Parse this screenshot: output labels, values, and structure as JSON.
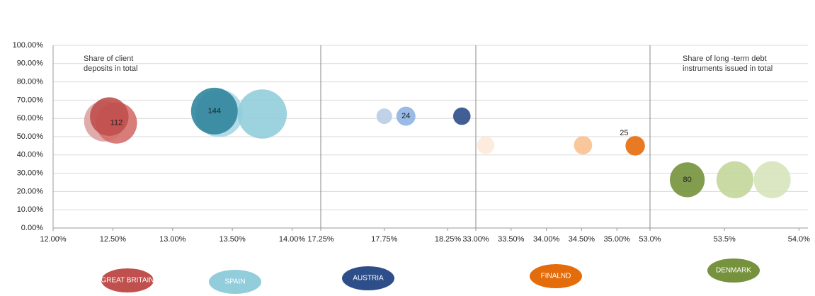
{
  "chart_data": [
    {
      "type": "bubble",
      "annotation": "Share of client deposits in total",
      "xlim": [
        12,
        14.24
      ],
      "xticks": [
        {
          "value": 12,
          "label": "12.00%"
        },
        {
          "value": 12.5,
          "label": "12.50%"
        },
        {
          "value": 13,
          "label": "13.00%"
        },
        {
          "value": 13.5,
          "label": "13.50%"
        },
        {
          "value": 14,
          "label": "14.00%"
        }
      ],
      "ylim": [
        0,
        100
      ],
      "yticks": [
        {
          "value": 0,
          "label": "0.00%"
        },
        {
          "value": 10,
          "label": "10.00%"
        },
        {
          "value": 20,
          "label": "20.00%"
        },
        {
          "value": 30,
          "label": "30.00%"
        },
        {
          "value": 40,
          "label": "40.00%"
        },
        {
          "value": 50,
          "label": "50.00%"
        },
        {
          "value": 60,
          "label": "60.00%"
        },
        {
          "value": 70,
          "label": "70.00%"
        },
        {
          "value": 80,
          "label": "80.00%"
        },
        {
          "value": 90,
          "label": "90.00%"
        },
        {
          "value": 100,
          "label": "100.00%"
        }
      ],
      "grid": true,
      "series": [
        {
          "name": "GREAT BRITAIN",
          "color": "#c0504d",
          "colors": [
            "#dba3a2",
            "#d46f6c",
            "#c0504d"
          ],
          "x": [
            12.43,
            12.53,
            12.47
          ],
          "values": [
            58.5,
            57.5,
            61
          ],
          "sizes": [
            110,
            112,
            98
          ],
          "size_labels": [
            null,
            "112",
            null
          ]
        },
        {
          "name": "SPAIN",
          "color": "#92cddc",
          "colors": [
            "#a8d8e4",
            "#31859c",
            "#92cddc"
          ],
          "x": [
            13.39,
            13.35,
            13.75
          ],
          "values": [
            62.8,
            64,
            62.4
          ],
          "sizes": [
            150,
            144,
            160
          ],
          "size_labels": [
            null,
            "144",
            null
          ]
        }
      ]
    },
    {
      "type": "bubble",
      "xlim": [
        17.25,
        18.47
      ],
      "ylim": [
        0,
        100
      ],
      "xticks": [
        {
          "value": 17.25,
          "label": "17.25%"
        },
        {
          "value": 17.75,
          "label": "17.75%"
        },
        {
          "value": 18.25,
          "label": "18.25%"
        }
      ],
      "series": [
        {
          "name": "AUSTRIA",
          "color": "#2e4e8a",
          "colors": [
            "#b9cde5",
            "#8eb4e3",
            "#2e4e8a"
          ],
          "x": [
            17.75,
            17.92,
            18.36
          ],
          "values": [
            61.2,
            61.2,
            61.2
          ],
          "sizes": [
            16,
            24,
            20
          ],
          "size_labels": [
            null,
            "24",
            null
          ]
        }
      ]
    },
    {
      "type": "bubble",
      "xlim": [
        33,
        35.47
      ],
      "ylim": [
        0,
        100
      ],
      "xticks": [
        {
          "value": 33,
          "label": "33.00%"
        },
        {
          "value": 33.5,
          "label": "33.50%"
        },
        {
          "value": 34,
          "label": "34.00%"
        },
        {
          "value": 34.5,
          "label": "34.50%"
        },
        {
          "value": 35,
          "label": "35.00%"
        }
      ],
      "series": [
        {
          "name": "FINALND",
          "color": "#e46c0a",
          "colors": [
            "#fde9d9",
            "#fac090",
            "#e46c0a"
          ],
          "x": [
            33.14,
            34.52,
            35.26
          ],
          "values": [
            45.3,
            45.3,
            45
          ],
          "sizes": [
            20,
            22,
            25
          ],
          "size_labels": [
            null,
            null,
            "25"
          ]
        }
      ]
    },
    {
      "type": "bubble",
      "annotation": "Share of long -term debt instruments issued in total",
      "xlim": [
        53,
        54.06
      ],
      "ylim": [
        0,
        100
      ],
      "xticks": [
        {
          "value": 53,
          "label": "53.0%"
        },
        {
          "value": 53.5,
          "label": "53.5%"
        },
        {
          "value": 54,
          "label": "54.0%"
        }
      ],
      "series": [
        {
          "name": "DENMARK",
          "color": "#76923c",
          "colors": [
            "#76923c",
            "#c3d69b",
            "#d7e4bd"
          ],
          "x": [
            53.25,
            53.57,
            53.82
          ],
          "values": [
            26.4,
            26.4,
            26.4
          ],
          "sizes": [
            80,
            90,
            90
          ],
          "size_labels": [
            "80",
            null,
            null
          ]
        }
      ]
    }
  ]
}
